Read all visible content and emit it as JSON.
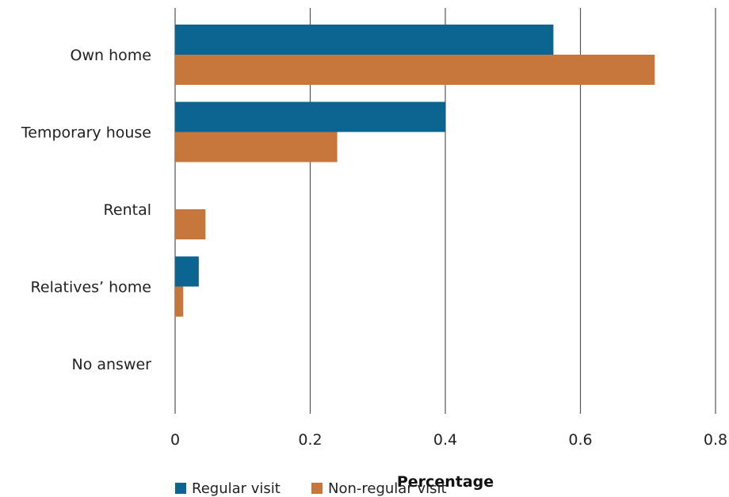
{
  "chart_data": {
    "type": "bar",
    "orientation": "horizontal",
    "categories": [
      "Own home",
      "Temporary house",
      "Rental",
      "Relatives’ home",
      "No answer"
    ],
    "series": [
      {
        "name": "Regular visit",
        "color": "#0c6490",
        "values": [
          0.56,
          0.4,
          0.0,
          0.035,
          0.0
        ]
      },
      {
        "name": "Non-regular visit",
        "color": "#c8773c",
        "values": [
          0.71,
          0.24,
          0.045,
          0.012,
          0.0
        ]
      }
    ],
    "xlabel": "Percentage",
    "ylabel": "",
    "xlim": [
      0,
      0.8
    ],
    "xticks": [
      "0",
      "0.2",
      "0.4",
      "0.6",
      "0.8"
    ],
    "grid": "vertical",
    "legend_position": "bottom"
  }
}
